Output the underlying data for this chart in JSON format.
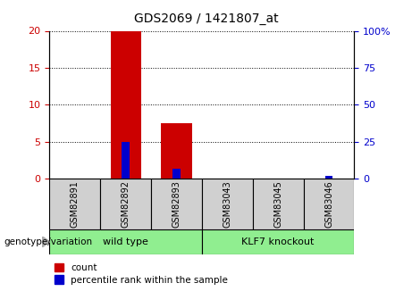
{
  "title": "GDS2069 / 1421807_at",
  "samples": [
    "GSM82891",
    "GSM82892",
    "GSM82893",
    "GSM83043",
    "GSM83045",
    "GSM83046"
  ],
  "count_values": [
    0,
    20,
    7.5,
    0,
    0,
    0
  ],
  "percentile_values": [
    0,
    25,
    7,
    0,
    0,
    2
  ],
  "group_label": "genotype/variation",
  "bar_color_count": "#cc0000",
  "bar_color_percentile": "#0000cc",
  "left_ylim": [
    0,
    20
  ],
  "right_ylim": [
    0,
    100
  ],
  "left_yticks": [
    0,
    5,
    10,
    15,
    20
  ],
  "right_yticks": [
    0,
    25,
    50,
    75,
    100
  ],
  "legend_count": "count",
  "legend_percentile": "percentile rank within the sample",
  "tick_color_left": "#cc0000",
  "tick_color_right": "#0000cc",
  "sample_box_color": "#d0d0d0",
  "group_defs": [
    {
      "start": 0,
      "end": 3,
      "label": "wild type",
      "color": "#90EE90"
    },
    {
      "start": 3,
      "end": 6,
      "label": "KLF7 knockout",
      "color": "#90EE90"
    }
  ]
}
